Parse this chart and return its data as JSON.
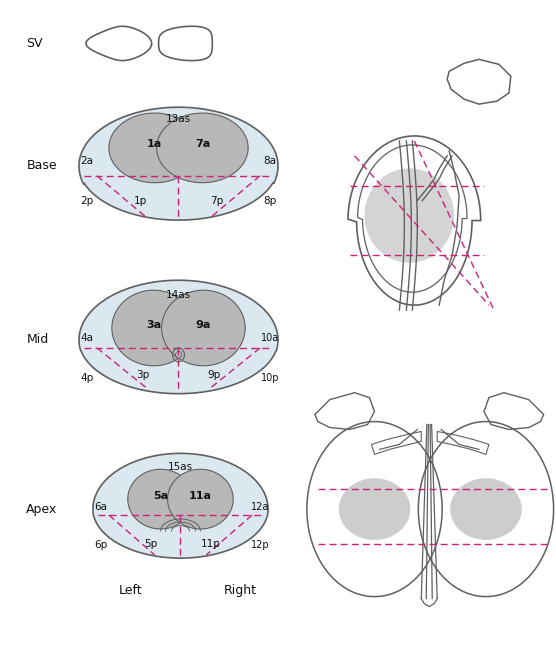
{
  "bg_color": "#ffffff",
  "outline_color": "#606060",
  "zone_fill": "#b8b8b8",
  "pz_fill": "#dce8f0",
  "dashed_color": "#cc2277",
  "text_color": "#111111",
  "sv_label": "SV",
  "base_label": "Base",
  "mid_label": "Mid",
  "apex_label": "Apex",
  "left_label": "Left",
  "right_label": "Right"
}
